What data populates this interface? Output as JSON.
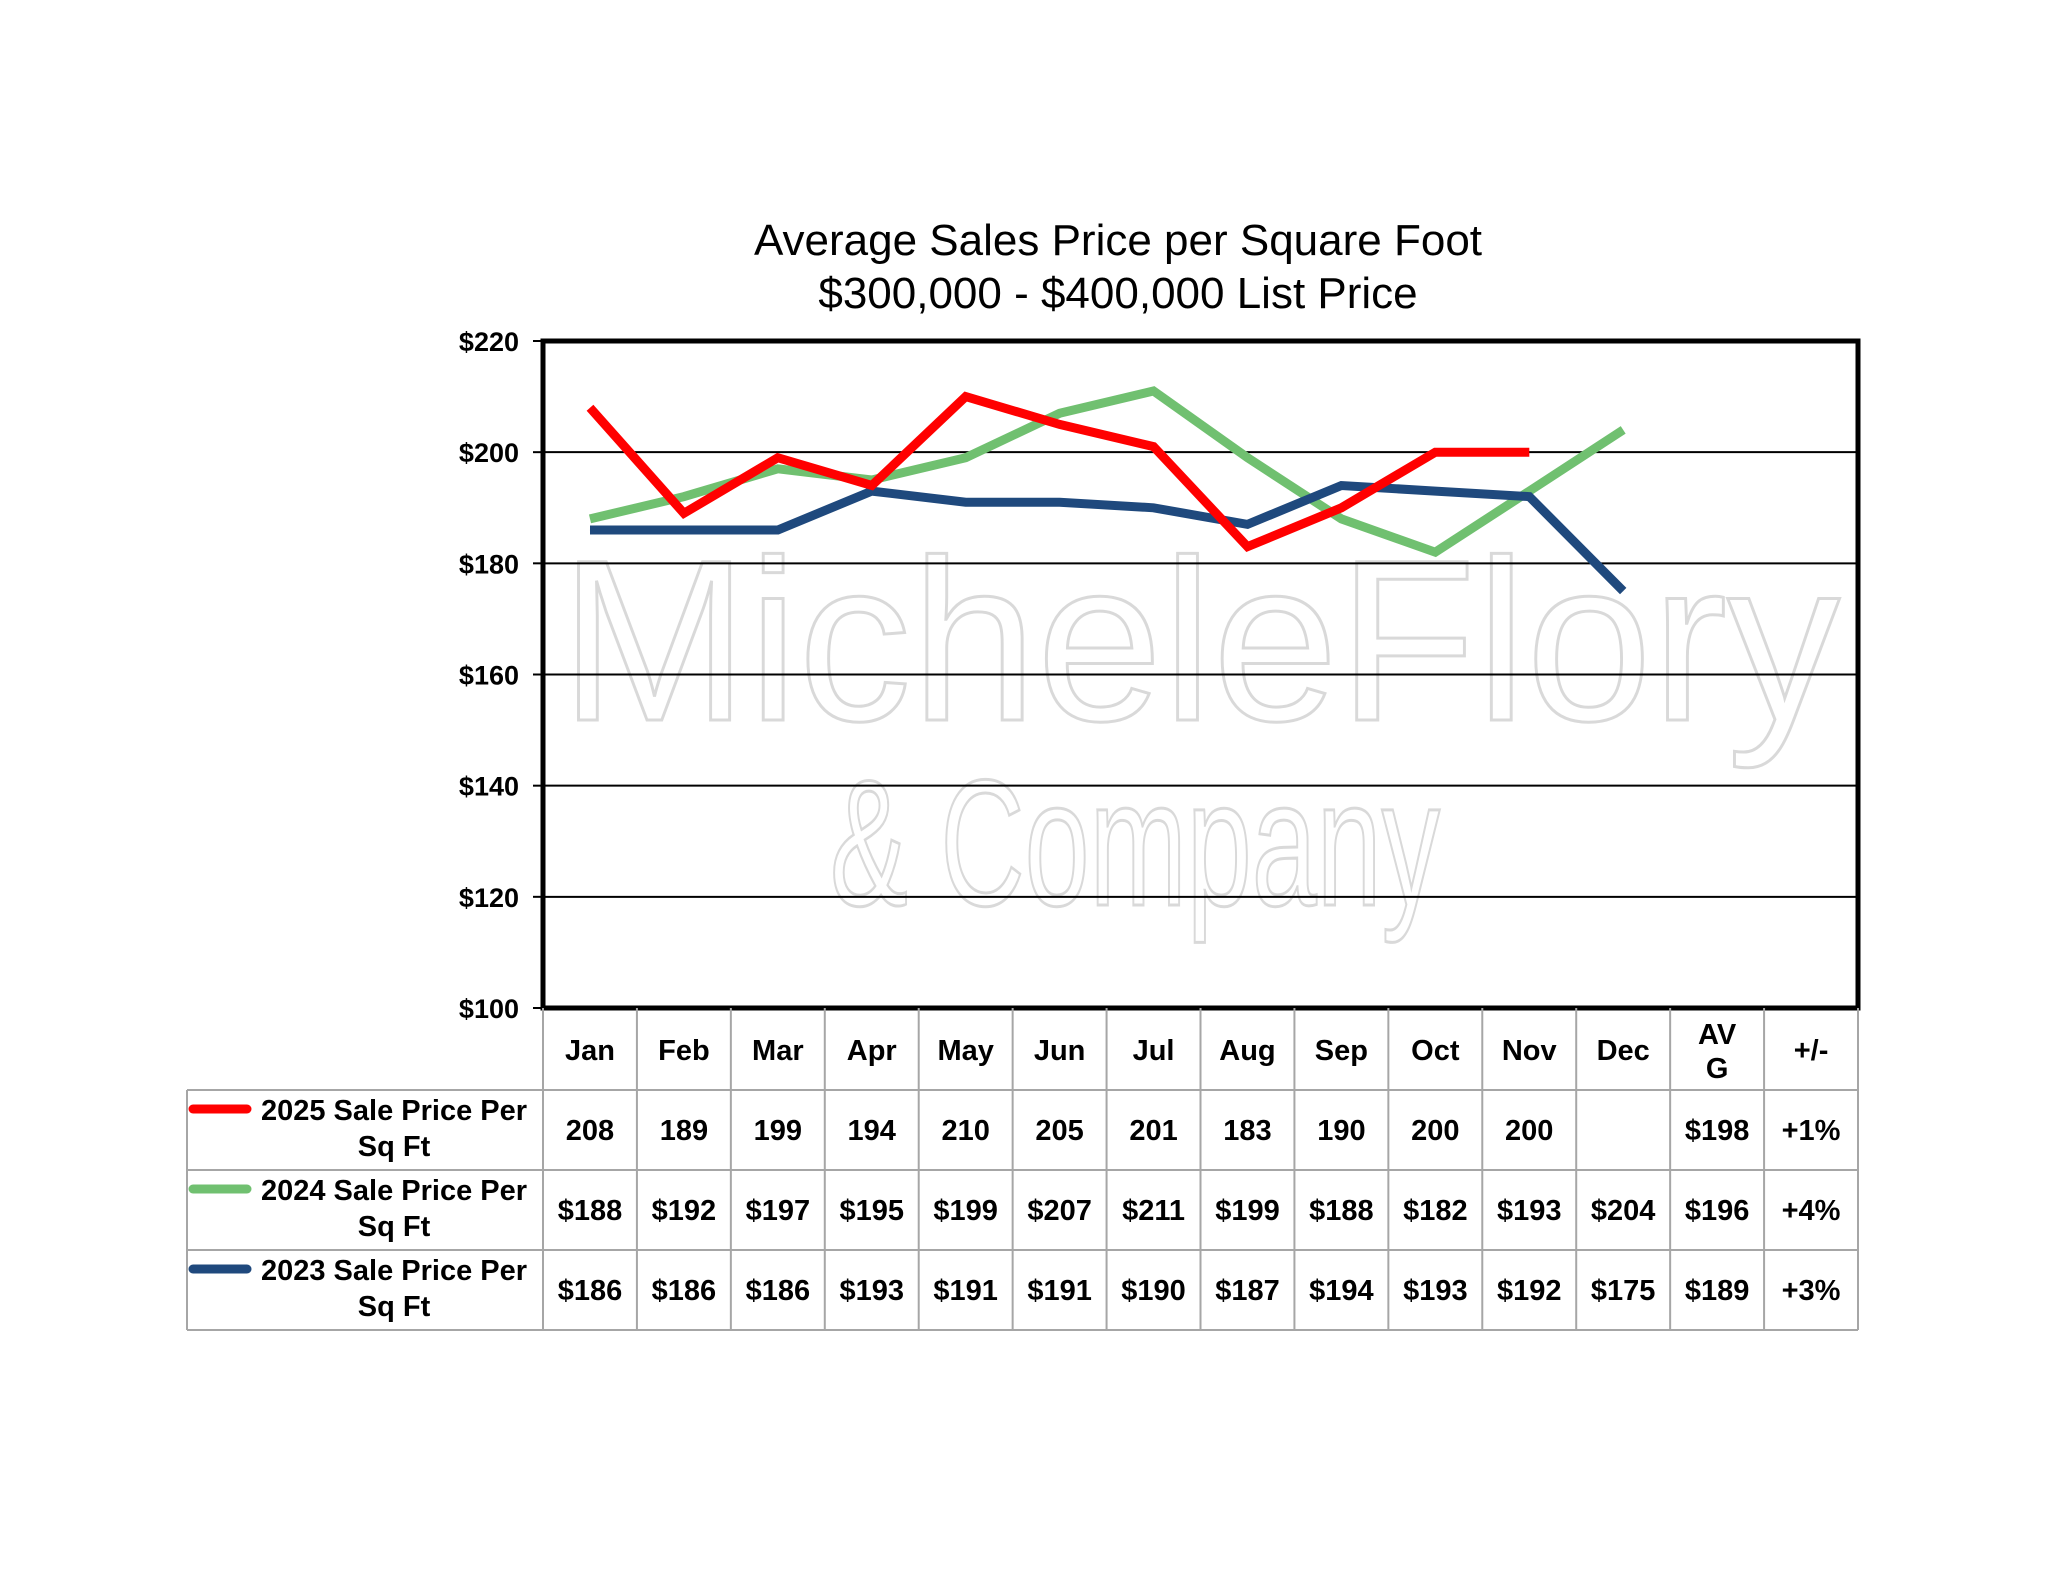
{
  "chart_data": {
    "type": "line",
    "title_lines": [
      "Average Sales Price per Square Foot",
      "$300,000 - $400,000 List Price"
    ],
    "categories": [
      "Jan",
      "Feb",
      "Mar",
      "Apr",
      "May",
      "Jun",
      "Jul",
      "Aug",
      "Sep",
      "Oct",
      "Nov",
      "Dec"
    ],
    "ylim": [
      100,
      220
    ],
    "yticks": [
      100,
      120,
      140,
      160,
      180,
      200,
      220
    ],
    "ytick_labels": [
      "$100",
      "$120",
      "$140",
      "$160",
      "$180",
      "$200",
      "$220"
    ],
    "grid": true,
    "watermark": [
      "MicheleFlory",
      "& Company"
    ],
    "series": [
      {
        "name_lines": [
          "2025 Sale Price Per",
          "Sq Ft"
        ],
        "color": "#ff0000",
        "values": [
          208,
          189,
          199,
          194,
          210,
          205,
          201,
          183,
          190,
          200,
          200,
          null
        ],
        "cells": [
          "208",
          "189",
          "199",
          "194",
          "210",
          "205",
          "201",
          "183",
          "190",
          "200",
          "200",
          ""
        ],
        "avg": "$198",
        "change": "+1%"
      },
      {
        "name_lines": [
          "2024 Sale Price Per",
          "Sq Ft"
        ],
        "color": "#70c070",
        "values": [
          188,
          192,
          197,
          195,
          199,
          207,
          211,
          199,
          188,
          182,
          193,
          204
        ],
        "cells": [
          "$188",
          "$192",
          "$197",
          "$195",
          "$199",
          "$207",
          "$211",
          "$199",
          "$188",
          "$182",
          "$193",
          "$204"
        ],
        "avg": "$196",
        "change": "+4%"
      },
      {
        "name_lines": [
          "2023 Sale Price Per",
          "Sq Ft"
        ],
        "color": "#1f497d",
        "values": [
          186,
          186,
          186,
          193,
          191,
          191,
          190,
          187,
          194,
          193,
          192,
          175
        ],
        "cells": [
          "$186",
          "$186",
          "$186",
          "$193",
          "$191",
          "$191",
          "$190",
          "$187",
          "$194",
          "$193",
          "$192",
          "$175"
        ],
        "avg": "$189",
        "change": "+3%"
      }
    ],
    "table_headers": {
      "avg_lines": [
        "AV",
        "G"
      ],
      "change": "+/-"
    }
  }
}
